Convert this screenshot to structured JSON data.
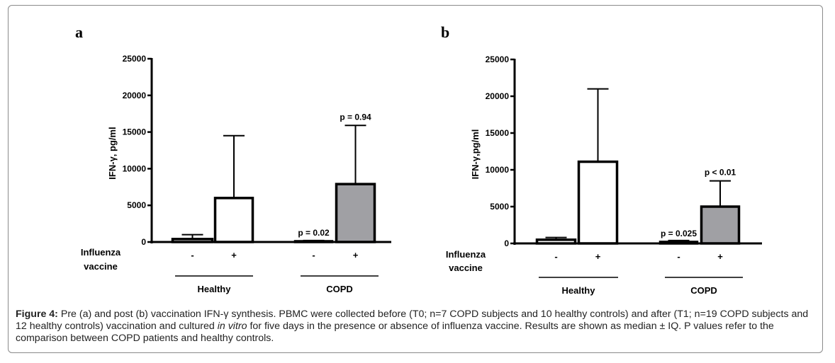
{
  "colors": {
    "healthy_fill": "#ffffff",
    "copd_fill": "#a0a0a4",
    "stroke": "#000000",
    "frame": "#8a8a8a"
  },
  "chart_data": [
    {
      "type": "bar",
      "panel": "a",
      "ylabel": "IFN-γ, pg/ml",
      "ylim": [
        0,
        25000
      ],
      "yticks": [
        "0",
        "5000",
        "10000",
        "15000",
        "20000",
        "25000"
      ],
      "row_label": [
        "Influenza",
        "vaccine"
      ],
      "groups": [
        {
          "name": "Healthy",
          "bars": [
            {
              "category": "-",
              "value": 400,
              "error_upper": 1000,
              "color": "healthy",
              "pvalue": ""
            },
            {
              "category": "+",
              "value": 6000,
              "error_upper": 14500,
              "color": "healthy",
              "pvalue": ""
            }
          ]
        },
        {
          "name": "COPD",
          "bars": [
            {
              "category": "-",
              "value": 100,
              "error_upper": 200,
              "color": "copd",
              "pvalue": "p = 0.02"
            },
            {
              "category": "+",
              "value": 7900,
              "error_upper": 15900,
              "color": "copd",
              "pvalue": "p = 0.94"
            }
          ]
        }
      ]
    },
    {
      "type": "bar",
      "panel": "b",
      "ylabel": "IFN-γ,pg/ml",
      "ylim": [
        0,
        25000
      ],
      "yticks": [
        "0",
        "5000",
        "10000",
        "15000",
        "20000",
        "25000"
      ],
      "row_label": [
        "Influenza",
        "vaccine"
      ],
      "groups": [
        {
          "name": "Healthy",
          "bars": [
            {
              "category": "-",
              "value": 500,
              "error_upper": 800,
              "color": "healthy",
              "pvalue": ""
            },
            {
              "category": "+",
              "value": 11100,
              "error_upper": 21000,
              "color": "healthy",
              "pvalue": ""
            }
          ]
        },
        {
          "name": "COPD",
          "bars": [
            {
              "category": "-",
              "value": 200,
              "error_upper": 400,
              "color": "copd",
              "pvalue": "p = 0.025"
            },
            {
              "category": "+",
              "value": 5000,
              "error_upper": 8500,
              "color": "copd",
              "pvalue": "p < 0.01"
            }
          ]
        }
      ]
    }
  ],
  "caption": {
    "label": "Figure 4:",
    "text_1": " Pre (a) and post (b) vaccination IFN-γ synthesis. PBMC were collected before (T0; n=7 COPD subjects and 10 healthy controls) and after (T1; n=19 COPD subjects and 12 healthy controls) vaccination and cultured ",
    "italic": "in vitro",
    "text_2": " for five days in the presence or absence of influenza vaccine. Results are shown as median ± IQ. P values refer to the comparison between COPD patients and healthy controls."
  }
}
